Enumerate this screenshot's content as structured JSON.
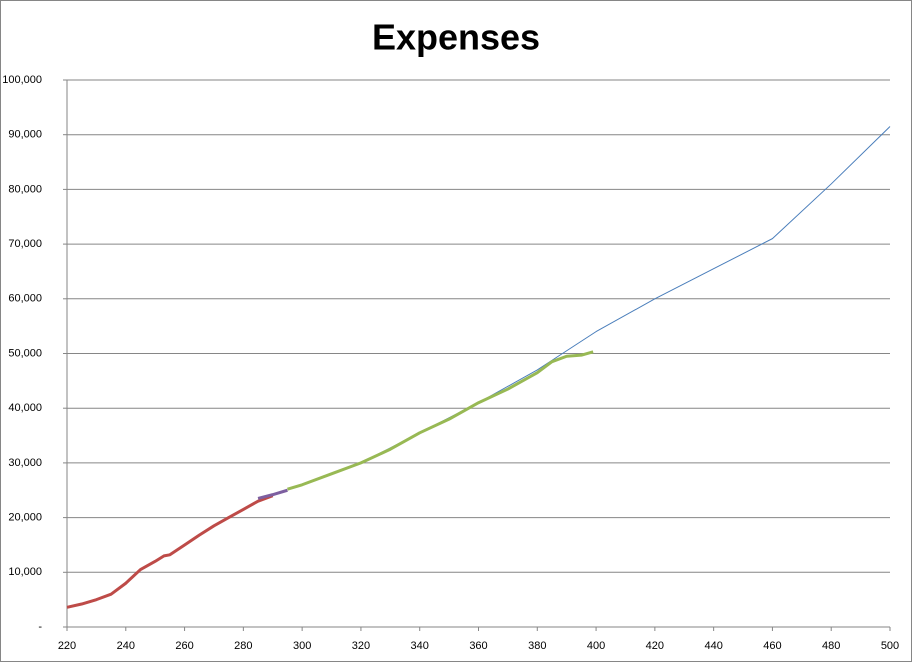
{
  "chart_data": {
    "type": "line",
    "title": "Expenses",
    "xlim": [
      220,
      500
    ],
    "xticks": [
      220,
      240,
      260,
      280,
      300,
      320,
      340,
      360,
      380,
      400,
      420,
      440,
      460,
      480,
      500
    ],
    "ylim": [
      0,
      100000
    ],
    "yticks": [
      {
        "value": 0,
        "label": "-"
      },
      {
        "value": 10000,
        "label": "10,000"
      },
      {
        "value": 20000,
        "label": "20,000"
      },
      {
        "value": 30000,
        "label": "30,000"
      },
      {
        "value": 40000,
        "label": "40,000"
      },
      {
        "value": 50000,
        "label": "50,000"
      },
      {
        "value": 60000,
        "label": "60,000"
      },
      {
        "value": 70000,
        "label": "70,000"
      },
      {
        "value": 80000,
        "label": "80,000"
      },
      {
        "value": 90000,
        "label": "90,000"
      },
      {
        "value": 100000,
        "label": "100,000"
      }
    ],
    "grid": true,
    "series": [
      {
        "color": "#4a7ebb",
        "linewidth": 1,
        "x": [
          300,
          320,
          340,
          360,
          380,
          390,
          400,
          420,
          440,
          460,
          480,
          500
        ],
        "values": [
          26000,
          30000,
          35500,
          41000,
          47000,
          50500,
          54000,
          60000,
          65500,
          71000,
          81000,
          91500
        ]
      },
      {
        "color": "#be4b48",
        "linewidth": 3,
        "x": [
          220,
          225,
          230,
          235,
          240,
          245,
          250,
          253,
          255,
          260,
          265,
          270,
          275,
          280,
          285,
          290
        ],
        "values": [
          3600,
          4200,
          5000,
          6000,
          8000,
          10500,
          12000,
          13000,
          13200,
          15000,
          16800,
          18500,
          20000,
          21500,
          23000,
          24000
        ]
      },
      {
        "color": "#7d5fa0",
        "linewidth": 3,
        "x": [
          285,
          290,
          295
        ],
        "values": [
          23500,
          24200,
          25000
        ]
      },
      {
        "color": "#98b954",
        "linewidth": 3,
        "x": [
          295,
          300,
          310,
          320,
          330,
          340,
          350,
          355,
          360,
          370,
          380,
          385,
          390,
          395,
          399
        ],
        "values": [
          25200,
          26000,
          28000,
          30000,
          32500,
          35500,
          38000,
          39500,
          41000,
          43500,
          46500,
          48500,
          49500,
          49700,
          50300
        ]
      }
    ]
  }
}
